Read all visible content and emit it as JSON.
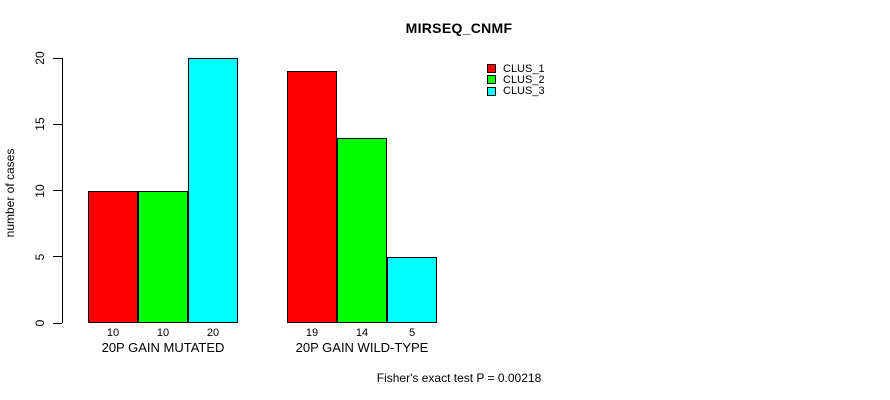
{
  "footer": "Fisher's exact test P = 0.00218",
  "chart_data": {
    "type": "bar",
    "title": "MIRSEQ_CNMF",
    "xlabel": "",
    "ylabel": "number of cases",
    "ylim": [
      0,
      20
    ],
    "yticks": [
      0,
      5,
      10,
      15,
      20
    ],
    "grid": false,
    "legend_position": "top-right",
    "show_values_under_bars": true,
    "bar_border_color": "#000000",
    "categories": [
      "20P GAIN MUTATED",
      "20P GAIN WILD-TYPE"
    ],
    "series": [
      {
        "name": "CLUS_1",
        "color": "#ff0000",
        "values": [
          10,
          19
        ]
      },
      {
        "name": "CLUS_2",
        "color": "#00ff00",
        "values": [
          10,
          14
        ]
      },
      {
        "name": "CLUS_3",
        "color": "#00ffff",
        "values": [
          20,
          5
        ]
      }
    ],
    "annotation": "Fisher's exact test P = 0.00218"
  }
}
